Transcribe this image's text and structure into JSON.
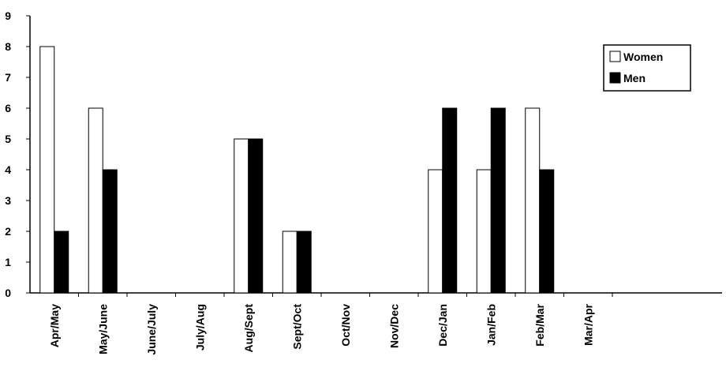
{
  "chart_data": {
    "type": "bar",
    "categories": [
      "Apr/May",
      "May/June",
      "June/July",
      "July/Aug",
      "Aug/Sept",
      "Sept/Oct",
      "Oct/Nov",
      "Nov/Dec",
      "Dec/Jan",
      "Jan/Feb",
      "Feb/Mar",
      "Mar/Apr"
    ],
    "series": [
      {
        "name": "Women",
        "color": "#ffffff",
        "values": [
          8,
          6,
          0,
          0,
          5,
          2,
          0,
          0,
          4,
          4,
          6,
          0
        ]
      },
      {
        "name": "Men",
        "color": "#000000",
        "values": [
          2,
          4,
          0,
          0,
          5,
          2,
          0,
          0,
          6,
          6,
          4,
          0
        ]
      }
    ],
    "ylim": [
      0,
      9
    ],
    "yticks": [
      0,
      1,
      2,
      3,
      4,
      5,
      6,
      7,
      8,
      9
    ],
    "grid": false,
    "legend": "top-right"
  }
}
